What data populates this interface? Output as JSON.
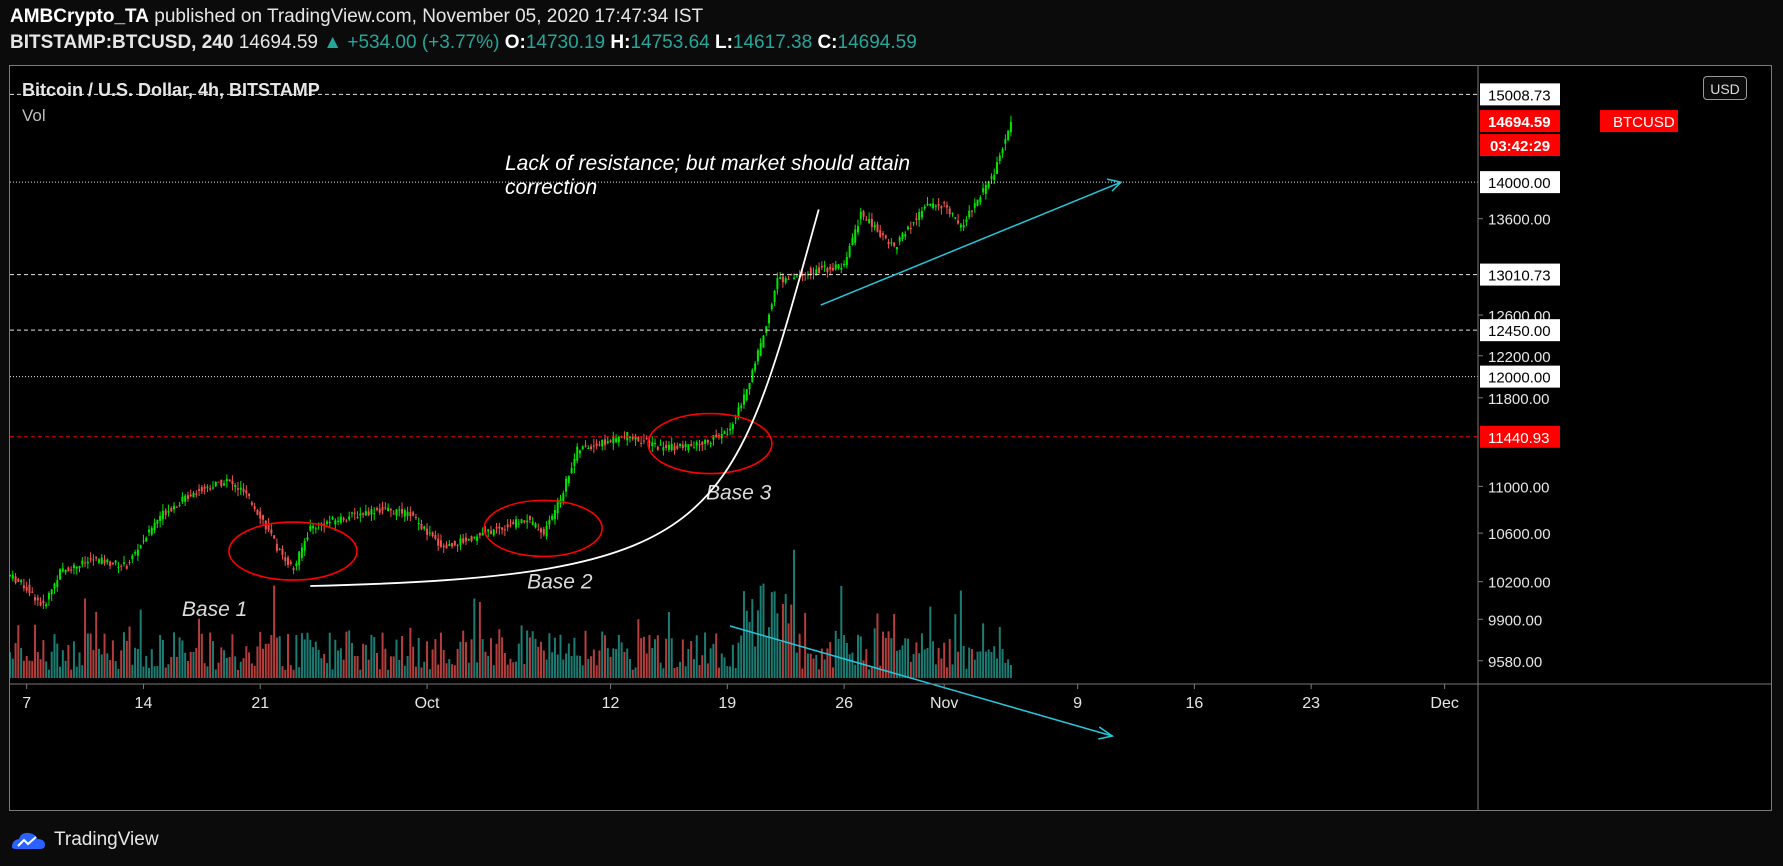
{
  "header": {
    "author": "AMBCrypto_TA",
    "published": "published on TradingView.com, November 05, 2020 17:47:34 IST",
    "symbol": "BITSTAMP:BTCUSD, 240",
    "last": "14694.59",
    "change": "▲ +534.00 (+3.77%)",
    "o_label": "O:",
    "o_val": "14730.19",
    "h_label": "H:",
    "h_val": "14753.64",
    "l_label": "L:",
    "l_val": "14617.38",
    "c_label": "C:",
    "c_val": "14694.59"
  },
  "legend": {
    "title": "Bitcoin / U.S. Dollar, 4h, BITSTAMP",
    "vol": "Vol"
  },
  "currency_button": "USD",
  "footer": {
    "brand": "TradingView"
  },
  "colors": {
    "up": "#26a69a",
    "up_bright": "#00e600",
    "down": "#ef5350",
    "marker_red": "#ff0000",
    "trend": "#26c6da",
    "price_label_bg": "#ff0000"
  },
  "chart_data": {
    "type": "candlestick",
    "title": "Bitcoin / U.S. Dollar, 4h, BITSTAMP",
    "y_scale": "log",
    "ylim": [
      9450,
      15350
    ],
    "x_range": [
      "2020-09-06",
      "2020-12-03"
    ],
    "y_ticks": [
      "9580.00",
      "9900.00",
      "10200.00",
      "10600.00",
      "11000.00",
      "11800.00",
      "12200.00",
      "12600.00",
      "13600.00"
    ],
    "x_ticks": [
      {
        "date": "2020-09-07",
        "label": "7"
      },
      {
        "date": "2020-09-14",
        "label": "14"
      },
      {
        "date": "2020-09-21",
        "label": "21"
      },
      {
        "date": "2020-10-01",
        "label": "Oct"
      },
      {
        "date": "2020-10-12",
        "label": "12"
      },
      {
        "date": "2020-10-19",
        "label": "19"
      },
      {
        "date": "2020-10-26",
        "label": "26"
      },
      {
        "date": "2020-11-01",
        "label": "Nov"
      },
      {
        "date": "2020-11-09",
        "label": "9"
      },
      {
        "date": "2020-11-16",
        "label": "16"
      },
      {
        "date": "2020-11-23",
        "label": "23"
      },
      {
        "date": "2020-12-01",
        "label": "Dec"
      }
    ],
    "horizontal_levels": [
      {
        "value": 15008.73,
        "label": "15008.73",
        "style": "dashed",
        "color": "#ffffff"
      },
      {
        "value": 14000.0,
        "label": "14000.00",
        "style": "dotted",
        "color": "#ffffff"
      },
      {
        "value": 13010.73,
        "label": "13010.73",
        "style": "dashed",
        "color": "#ffffff"
      },
      {
        "value": 12450.0,
        "label": "12450.00",
        "style": "dashed",
        "color": "#ffffff"
      },
      {
        "value": 12000.0,
        "label": "12000.00",
        "style": "dotted",
        "color": "#ffffff"
      },
      {
        "value": 11440.93,
        "label": "11440.93",
        "style": "dashed",
        "color": "#ff0000"
      }
    ],
    "current_price": {
      "symbol": "BTCUSD",
      "value": 14694.59,
      "label": "14694.59",
      "countdown": "03:42:29"
    },
    "price_path": [
      {
        "date": "2020-09-06",
        "close": 10250
      },
      {
        "date": "2020-09-07",
        "close": 10150
      },
      {
        "date": "2020-09-08",
        "close": 10000
      },
      {
        "date": "2020-09-09",
        "close": 10280
      },
      {
        "date": "2020-09-11",
        "close": 10380
      },
      {
        "date": "2020-09-13",
        "close": 10330
      },
      {
        "date": "2020-09-15",
        "close": 10750
      },
      {
        "date": "2020-09-17",
        "close": 10950
      },
      {
        "date": "2020-09-19",
        "close": 11050
      },
      {
        "date": "2020-09-20",
        "close": 10950
      },
      {
        "date": "2020-09-21",
        "close": 10750
      },
      {
        "date": "2020-09-22",
        "close": 10480
      },
      {
        "date": "2020-09-23",
        "close": 10300
      },
      {
        "date": "2020-09-24",
        "close": 10650
      },
      {
        "date": "2020-09-26",
        "close": 10730
      },
      {
        "date": "2020-09-28",
        "close": 10800
      },
      {
        "date": "2020-09-30",
        "close": 10760
      },
      {
        "date": "2020-10-01",
        "close": 10600
      },
      {
        "date": "2020-10-02",
        "close": 10480
      },
      {
        "date": "2020-10-05",
        "close": 10620
      },
      {
        "date": "2020-10-07",
        "close": 10720
      },
      {
        "date": "2020-10-08",
        "close": 10600
      },
      {
        "date": "2020-10-09",
        "close": 10900
      },
      {
        "date": "2020-10-10",
        "close": 11320
      },
      {
        "date": "2020-10-13",
        "close": 11450
      },
      {
        "date": "2020-10-15",
        "close": 11350
      },
      {
        "date": "2020-10-17",
        "close": 11350
      },
      {
        "date": "2020-10-19",
        "close": 11480
      },
      {
        "date": "2020-10-20",
        "close": 11800
      },
      {
        "date": "2020-10-21",
        "close": 12300
      },
      {
        "date": "2020-10-22",
        "close": 12950
      },
      {
        "date": "2020-10-24",
        "close": 13050
      },
      {
        "date": "2020-10-26",
        "close": 13100
      },
      {
        "date": "2020-10-27",
        "close": 13650
      },
      {
        "date": "2020-10-29",
        "close": 13300
      },
      {
        "date": "2020-10-31",
        "close": 13750
      },
      {
        "date": "2020-11-01",
        "close": 13750
      },
      {
        "date": "2020-11-02",
        "close": 13500
      },
      {
        "date": "2020-11-03",
        "close": 13800
      },
      {
        "date": "2020-11-04",
        "close": 14100
      },
      {
        "date": "2020-11-05",
        "close": 14694.59
      }
    ],
    "volume": {
      "trend_start": {
        "date": "2020-10-20"
      },
      "trend_end": {
        "date": "2020-11-10"
      }
    },
    "annotations": [
      {
        "id": "note",
        "text_lines": [
          "Lack of resistance; but market should attain",
          "correction"
        ]
      },
      {
        "id": "base1",
        "text": "Base 1",
        "date": "2020-09-22",
        "price": 10450
      },
      {
        "id": "base2",
        "text": "Base 2",
        "date": "2020-10-07",
        "price": 10640
      },
      {
        "id": "base3",
        "text": "Base 3",
        "date": "2020-10-17",
        "price": 11380
      }
    ],
    "trendline": {
      "start": {
        "date": "2020-10-24",
        "price": 12700
      },
      "end": {
        "date": "2020-11-11",
        "price": 14000
      }
    }
  }
}
